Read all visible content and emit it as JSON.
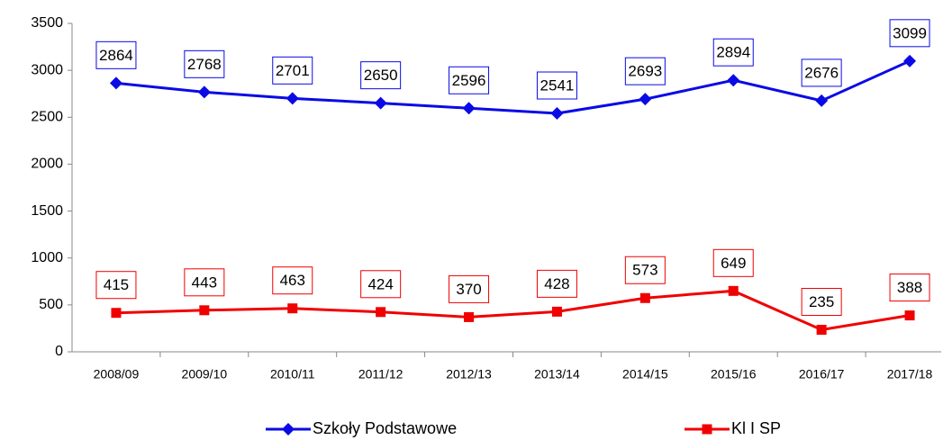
{
  "chart_data": {
    "type": "line",
    "categories": [
      "2008/09",
      "2009/10",
      "2010/11",
      "2011/12",
      "2012/13",
      "2013/14",
      "2014/15",
      "2015/16",
      "2016/17",
      "2017/18"
    ],
    "series": [
      {
        "name": "Szkoły Podstawowe",
        "color": "#0a0ae6",
        "marker": "diamond",
        "values": [
          2864,
          2768,
          2701,
          2650,
          2596,
          2541,
          2693,
          2894,
          2676,
          3099
        ]
      },
      {
        "name": "Kl I SP",
        "color": "#f00000",
        "marker": "square",
        "values": [
          415,
          443,
          463,
          424,
          370,
          428,
          573,
          649,
          235,
          388
        ]
      }
    ],
    "ylim": [
      0,
      3500
    ],
    "yticks": [
      0,
      500,
      1000,
      1500,
      2000,
      2500,
      3000,
      3500
    ],
    "grid": false,
    "legend": "bottom"
  }
}
